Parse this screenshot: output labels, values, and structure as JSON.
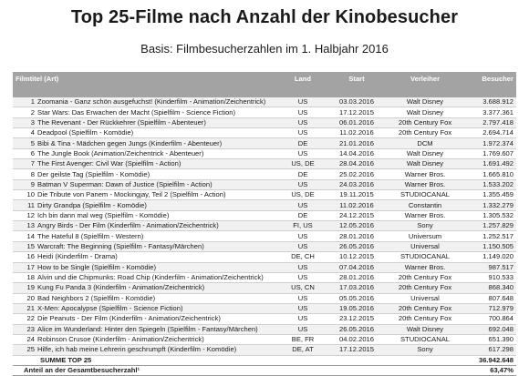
{
  "title": "Top 25-Filme nach Anzahl der Kinobesucher",
  "subtitle": "Basis: Filmbesucherzahlen im 1. Halbjahr 2016",
  "table": {
    "headers": {
      "title": "Filmtitel  (Art)",
      "land": "Land",
      "start": "Start",
      "verleiher": "Verleiher",
      "besucher": "Besucher"
    },
    "rows": [
      {
        "rank": "1",
        "title": "Zoomania - Ganz schön ausgefuchst! (Kinderfilm - Animation/Zeichentrick)",
        "land": "US",
        "start": "03.03.2016",
        "verleiher": "Walt Disney",
        "besucher": "3.688.912"
      },
      {
        "rank": "2",
        "title": "Star Wars: Das Erwachen der Macht (Spielfilm - Science Fiction)",
        "land": "US",
        "start": "17.12.2015",
        "verleiher": "Walt Disney",
        "besucher": "3.377.361"
      },
      {
        "rank": "3",
        "title": "The Revenant - Der Rückkehrer (Spielfilm - Abenteuer)",
        "land": "US",
        "start": "06.01.2016",
        "verleiher": "20th Century Fox",
        "besucher": "2.797.418"
      },
      {
        "rank": "4",
        "title": "Deadpool (Spielfilm - Komödie)",
        "land": "US",
        "start": "11.02.2016",
        "verleiher": "20th Century Fox",
        "besucher": "2.694.714"
      },
      {
        "rank": "5",
        "title": "Bibi & Tina - Mädchen gegen Jungs (Kinderfilm - Abenteuer)",
        "land": "DE",
        "start": "21.01.2016",
        "verleiher": "DCM",
        "besucher": "1.972.374"
      },
      {
        "rank": "6",
        "title": "The Jungle Book (Animation/Zeichentrick - Abenteuer)",
        "land": "US",
        "start": "14.04.2016",
        "verleiher": "Walt Disney",
        "besucher": "1.769.607"
      },
      {
        "rank": "7",
        "title": "The First Avenger: Civil War (Spielfilm - Action)",
        "land": "US, DE",
        "start": "28.04.2016",
        "verleiher": "Walt Disney",
        "besucher": "1.691.492"
      },
      {
        "rank": "8",
        "title": "Der geilste Tag (Spielfilm - Komödie)",
        "land": "DE",
        "start": "25.02.2016",
        "verleiher": "Warner Bros.",
        "besucher": "1.665.810"
      },
      {
        "rank": "9",
        "title": "Batman V Superman: Dawn of Justice (Spielfilm - Action)",
        "land": "US",
        "start": "24.03.2016",
        "verleiher": "Warner Bros.",
        "besucher": "1.533.202"
      },
      {
        "rank": "10",
        "title": "Die Tribute von Panem - Mockingjay, Teil 2 (Spielfilm - Action)",
        "land": "US, DE",
        "start": "19.11.2015",
        "verleiher": "STUDIOCANAL",
        "besucher": "1.355.459"
      },
      {
        "rank": "11",
        "title": "Dirty Grandpa (Spielfilm - Komödie)",
        "land": "US",
        "start": "11.02.2016",
        "verleiher": "Constantin",
        "besucher": "1.332.279"
      },
      {
        "rank": "12",
        "title": "Ich bin dann mal weg (Spielfilm - Komödie)",
        "land": "DE",
        "start": "24.12.2015",
        "verleiher": "Warner Bros.",
        "besucher": "1.305.532"
      },
      {
        "rank": "13",
        "title": "Angry Birds - Der Film (Kinderfilm - Animation/Zeichentrick)",
        "land": "FI, US",
        "start": "12.05.2016",
        "verleiher": "Sony",
        "besucher": "1.257.829"
      },
      {
        "rank": "14",
        "title": "The Hateful 8 (Spielfilm - Western)",
        "land": "US",
        "start": "28.01.2016",
        "verleiher": "Universum",
        "besucher": "1.252.517"
      },
      {
        "rank": "15",
        "title": "Warcraft: The Beginning (Spielfilm - Fantasy/Märchen)",
        "land": "US",
        "start": "26.05.2016",
        "verleiher": "Universal",
        "besucher": "1.150.505"
      },
      {
        "rank": "16",
        "title": "Heidi (Kinderfilm - Drama)",
        "land": "DE, CH",
        "start": "10.12.2015",
        "verleiher": "STUDIOCANAL",
        "besucher": "1.149.020"
      },
      {
        "rank": "17",
        "title": "How to be Single (Spielfilm - Komödie)",
        "land": "US",
        "start": "07.04.2016",
        "verleiher": "Warner Bros.",
        "besucher": "987.517"
      },
      {
        "rank": "18",
        "title": "Alvin und die Chipmunks: Road Chip (Kinderfilm - Animation/Zeichentrick)",
        "land": "US",
        "start": "28.01.2016",
        "verleiher": "20th Century Fox",
        "besucher": "910.533"
      },
      {
        "rank": "19",
        "title": "Kung Fu Panda 3 (Kinderfilm - Animation/Zeichentrick)",
        "land": "US, CN",
        "start": "17.03.2016",
        "verleiher": "20th Century Fox",
        "besucher": "868.340"
      },
      {
        "rank": "20",
        "title": "Bad Neighbors 2 (Spielfilm - Komödie)",
        "land": "US",
        "start": "05.05.2016",
        "verleiher": "Universal",
        "besucher": "807.648"
      },
      {
        "rank": "21",
        "title": "X-Men: Apocalypse (Spielfilm - Science Fiction)",
        "land": "US",
        "start": "19.05.2016",
        "verleiher": "20th Century Fox",
        "besucher": "712.979"
      },
      {
        "rank": "22",
        "title": "Die Peanuts - Der Film (Kinderfilm - Animation/Zeichentrick)",
        "land": "US",
        "start": "23.12.2015",
        "verleiher": "20th Century Fox",
        "besucher": "700.864"
      },
      {
        "rank": "23",
        "title": "Alice im Wunderland: Hinter den Spiegeln (Spielfilm - Fantasy/Märchen)",
        "land": "US",
        "start": "26.05.2016",
        "verleiher": "Walt Disney",
        "besucher": "692.048"
      },
      {
        "rank": "24",
        "title": "Robinson Crusoe (Kinderfilm - Animation/Zeichentrick)",
        "land": "BE, FR",
        "start": "04.02.2016",
        "verleiher": "STUDIOCANAL",
        "besucher": "651.390"
      },
      {
        "rank": "25",
        "title": "Hilfe, ich hab meine Lehrerin geschrumpft (Kinderfilm - Komödie)",
        "land": "DE, AT",
        "start": "17.12.2015",
        "verleiher": "Sony",
        "besucher": "617.298"
      }
    ],
    "summary": {
      "sum_label": "SUMME TOP 25",
      "sum_value": "36.942.648",
      "share_label": "Anteil an der Gesamtbesucherzahl¹",
      "share_value": "63,47%"
    }
  }
}
